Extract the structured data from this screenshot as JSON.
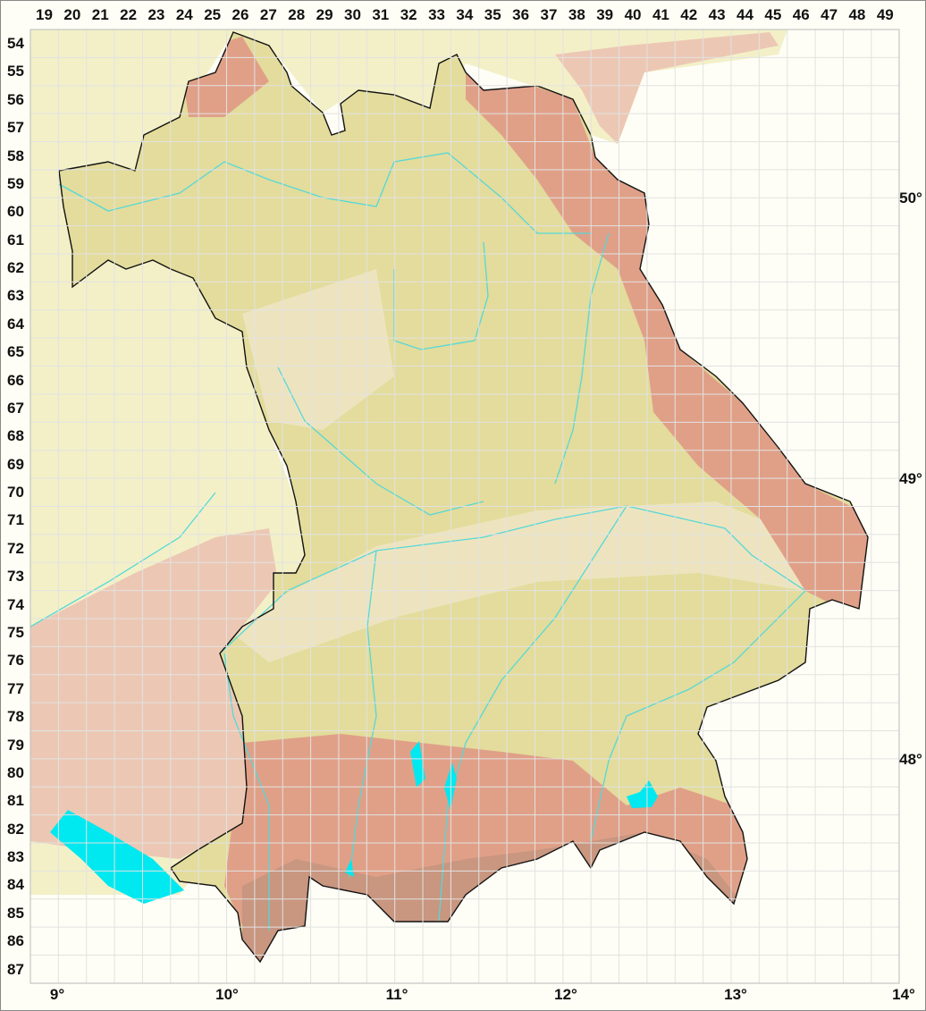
{
  "map": {
    "columns": [
      "19",
      "20",
      "21",
      "22",
      "23",
      "24",
      "25",
      "26",
      "27",
      "28",
      "29",
      "30",
      "31",
      "32",
      "33",
      "34",
      "35",
      "36",
      "37",
      "38",
      "39",
      "40",
      "41",
      "42",
      "43",
      "44",
      "45",
      "46",
      "47",
      "48",
      "49"
    ],
    "rows": [
      "54",
      "55",
      "56",
      "57",
      "58",
      "59",
      "60",
      "61",
      "62",
      "63",
      "64",
      "65",
      "66",
      "67",
      "68",
      "69",
      "70",
      "71",
      "72",
      "73",
      "74",
      "75",
      "76",
      "77",
      "78",
      "79",
      "80",
      "81",
      "82",
      "83",
      "84",
      "85",
      "86",
      "87"
    ],
    "longitudes": [
      "9°",
      "10°",
      "11°",
      "12°",
      "13°",
      "14°"
    ],
    "latitudes": [
      "50°",
      "49°",
      "48°"
    ],
    "colors": {
      "background": "#fefef6",
      "outside_land": "#f3f0c8",
      "bavaria_land": "#e3dc9c",
      "lowland": "#ede4bf",
      "upland_red": "#e0a088",
      "outside_red": "#ecc8b4",
      "alps": "#c99680",
      "water": "#00e8f0",
      "river": "#55d8d8",
      "border": "#111111",
      "grid": "#e2e2e2"
    }
  }
}
